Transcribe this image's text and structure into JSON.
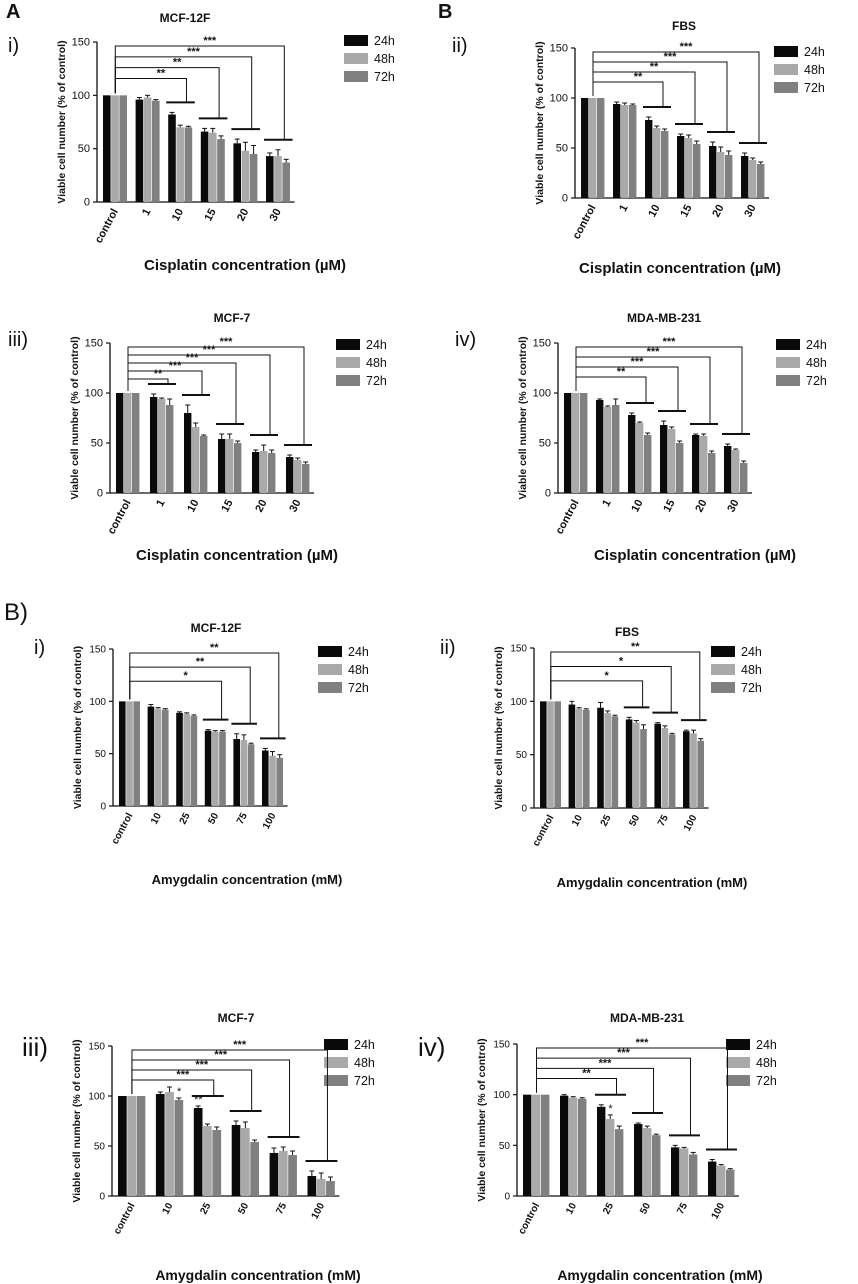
{
  "figure_labels": {
    "A_top": "A",
    "B_top": "B",
    "B_mid": "B)"
  },
  "legend": [
    "24h",
    "48h",
    "72h"
  ],
  "colors": {
    "24h": "#0a0a0a",
    "48h": "#a9a9a9",
    "72h": "#808080",
    "axis": "#111111"
  },
  "chart_data": [
    {
      "id": "cis-mcf12f",
      "panel": "i)",
      "type": "bar",
      "title": "MCF-12F",
      "xlabel": "Cisplatin concentration (µM)",
      "ylabel": "Viable cell number (% of control)",
      "ylim": [
        0,
        150
      ],
      "yticks": [
        0,
        50,
        100,
        150
      ],
      "categories": [
        "control",
        "1",
        "10",
        "15",
        "20",
        "30"
      ],
      "series": [
        {
          "name": "24h",
          "values": [
            100,
            96,
            82,
            66,
            55,
            43
          ],
          "errors": [
            0,
            2,
            2,
            3,
            4,
            3
          ]
        },
        {
          "name": "48h",
          "values": [
            100,
            98,
            70,
            65,
            48,
            43
          ],
          "errors": [
            0,
            2,
            2,
            4,
            8,
            6
          ]
        },
        {
          "name": "72h",
          "values": [
            100,
            95,
            70,
            59,
            45,
            37
          ],
          "errors": [
            0,
            1,
            1,
            3,
            8,
            3
          ]
        }
      ],
      "significance": [
        "**",
        "**",
        "***",
        "***"
      ]
    },
    {
      "id": "cis-fbs",
      "panel": "ii)",
      "type": "bar",
      "title": "FBS",
      "xlabel": "Cisplatin concentration (µM)",
      "ylabel": "Viable cell number (% of control)",
      "ylim": [
        0,
        150
      ],
      "yticks": [
        0,
        50,
        100,
        150
      ],
      "categories": [
        "control",
        "1",
        "10",
        "15",
        "20",
        "30"
      ],
      "series": [
        {
          "name": "24h",
          "values": [
            100,
            94,
            78,
            62,
            52,
            42
          ],
          "errors": [
            0,
            2,
            3,
            2,
            4,
            3
          ]
        },
        {
          "name": "48h",
          "values": [
            100,
            93,
            70,
            60,
            46,
            38
          ],
          "errors": [
            0,
            2,
            2,
            3,
            5,
            2
          ]
        },
        {
          "name": "72h",
          "values": [
            100,
            93,
            67,
            54,
            43,
            34
          ],
          "errors": [
            0,
            1,
            2,
            3,
            4,
            2
          ]
        }
      ],
      "significance": [
        "**",
        "**",
        "***",
        "***"
      ]
    },
    {
      "id": "cis-mcf7",
      "panel": "iii)",
      "type": "bar",
      "title": "MCF-7",
      "xlabel": "Cisplatin concentration (µM)",
      "ylabel": "Viable cell number (% of control)",
      "ylim": [
        0,
        150
      ],
      "yticks": [
        0,
        50,
        100,
        150
      ],
      "categories": [
        "control",
        "1",
        "10",
        "15",
        "20",
        "30"
      ],
      "series": [
        {
          "name": "24h",
          "values": [
            100,
            96,
            80,
            54,
            41,
            36
          ],
          "errors": [
            0,
            3,
            8,
            5,
            2,
            2
          ]
        },
        {
          "name": "48h",
          "values": [
            100,
            94,
            66,
            54,
            42,
            33
          ],
          "errors": [
            0,
            1,
            4,
            5,
            6,
            2
          ]
        },
        {
          "name": "72h",
          "values": [
            100,
            88,
            57,
            50,
            40,
            29
          ],
          "errors": [
            0,
            6,
            1,
            2,
            3,
            2
          ]
        }
      ],
      "significance": [
        "**",
        "***",
        "***",
        "***",
        "***"
      ]
    },
    {
      "id": "cis-mdamb231",
      "panel": "iv)",
      "type": "bar",
      "title": "MDA-MB-231",
      "xlabel": "Cisplatin concentration (µM)",
      "ylabel": "Viable cell number (% of control)",
      "ylim": [
        0,
        150
      ],
      "yticks": [
        0,
        50,
        100,
        150
      ],
      "categories": [
        "control",
        "1",
        "10",
        "15",
        "20",
        "30"
      ],
      "series": [
        {
          "name": "24h",
          "values": [
            100,
            93,
            78,
            68,
            58,
            47
          ],
          "errors": [
            0,
            1,
            2,
            4,
            1,
            2
          ]
        },
        {
          "name": "48h",
          "values": [
            100,
            86,
            70,
            64,
            57,
            43
          ],
          "errors": [
            0,
            1,
            1,
            2,
            2,
            1
          ]
        },
        {
          "name": "72h",
          "values": [
            100,
            88,
            58,
            50,
            40,
            30
          ],
          "errors": [
            0,
            6,
            2,
            2,
            2,
            2
          ]
        }
      ],
      "significance": [
        "**",
        "***",
        "***",
        "***"
      ]
    },
    {
      "id": "amy-mcf12f",
      "panel": "i)",
      "type": "bar",
      "title": "MCF-12F",
      "xlabel": "Amygdalin concentration (mM)",
      "ylabel": "Viable cell number (% of control)",
      "ylim": [
        0,
        150
      ],
      "yticks": [
        0,
        50,
        100,
        150
      ],
      "categories": [
        "control",
        "10",
        "25",
        "50",
        "75",
        "100"
      ],
      "series": [
        {
          "name": "24h",
          "values": [
            100,
            95,
            89,
            72,
            64,
            53
          ],
          "errors": [
            0,
            2,
            1,
            1,
            5,
            2
          ]
        },
        {
          "name": "48h",
          "values": [
            100,
            93,
            88,
            71,
            63,
            48
          ],
          "errors": [
            0,
            1,
            1,
            1,
            5,
            4
          ]
        },
        {
          "name": "72h",
          "values": [
            100,
            92,
            86,
            71,
            59,
            46
          ],
          "errors": [
            0,
            1,
            1,
            1,
            1,
            3
          ]
        }
      ],
      "significance": [
        "*",
        "**",
        "**"
      ]
    },
    {
      "id": "amy-fbs",
      "panel": "ii)",
      "type": "bar",
      "title": "FBS",
      "xlabel": "Amygdalin concentration (mM)",
      "ylabel": "Viable cell number (% of control)",
      "ylim": [
        0,
        150
      ],
      "yticks": [
        0,
        50,
        100,
        150
      ],
      "categories": [
        "control",
        "10",
        "25",
        "50",
        "75",
        "100"
      ],
      "series": [
        {
          "name": "24h",
          "values": [
            100,
            97,
            94,
            83,
            79,
            72
          ],
          "errors": [
            0,
            3,
            5,
            2,
            1,
            1
          ]
        },
        {
          "name": "48h",
          "values": [
            100,
            93,
            89,
            80,
            75,
            70
          ],
          "errors": [
            0,
            1,
            2,
            2,
            2,
            3
          ]
        },
        {
          "name": "72h",
          "values": [
            100,
            92,
            86,
            74,
            69,
            63
          ],
          "errors": [
            0,
            1,
            1,
            4,
            1,
            2
          ]
        }
      ],
      "significance": [
        "*",
        "*",
        "**"
      ]
    },
    {
      "id": "amy-mcf7",
      "panel": "iii)",
      "type": "bar",
      "title": "MCF-7",
      "xlabel": "Amygdalin concentration (mM)",
      "ylabel": "Viable cell number (% of control)",
      "ylim": [
        0,
        150
      ],
      "yticks": [
        0,
        50,
        100,
        150
      ],
      "categories": [
        "control",
        "10",
        "25",
        "50",
        "75",
        "100"
      ],
      "series": [
        {
          "name": "24h",
          "values": [
            100,
            102,
            88,
            71,
            43,
            20
          ],
          "errors": [
            0,
            2,
            2,
            4,
            5,
            5
          ]
        },
        {
          "name": "48h",
          "values": [
            100,
            104,
            70,
            68,
            45,
            17
          ],
          "errors": [
            0,
            5,
            2,
            6,
            4,
            6
          ]
        },
        {
          "name": "72h",
          "values": [
            100,
            96,
            66,
            54,
            41,
            15
          ],
          "errors": [
            0,
            2,
            3,
            2,
            4,
            4
          ]
        }
      ],
      "bar_stars": [
        "*",
        "**"
      ],
      "significance": [
        "***",
        "***",
        "***",
        "***"
      ]
    },
    {
      "id": "amy-mdamb231",
      "panel": "iv)",
      "type": "bar",
      "title": "MDA-MB-231",
      "xlabel": "Amygdalin concentration (mM)",
      "ylabel": "Viable cell number (% of control)",
      "ylim": [
        0,
        150
      ],
      "yticks": [
        0,
        50,
        100,
        150
      ],
      "categories": [
        "control",
        "10",
        "25",
        "50",
        "75",
        "100"
      ],
      "series": [
        {
          "name": "24h",
          "values": [
            100,
            99,
            88,
            71,
            48,
            34
          ],
          "errors": [
            0,
            1,
            2,
            1,
            2,
            2
          ]
        },
        {
          "name": "48h",
          "values": [
            100,
            97,
            76,
            67,
            47,
            30
          ],
          "errors": [
            0,
            1,
            4,
            2,
            1,
            1
          ]
        },
        {
          "name": "72h",
          "values": [
            100,
            96,
            66,
            60,
            41,
            26
          ],
          "errors": [
            0,
            1,
            3,
            1,
            2,
            1
          ]
        }
      ],
      "bar_stars": [
        "*"
      ],
      "significance": [
        "**",
        "***",
        "***",
        "***"
      ]
    }
  ]
}
